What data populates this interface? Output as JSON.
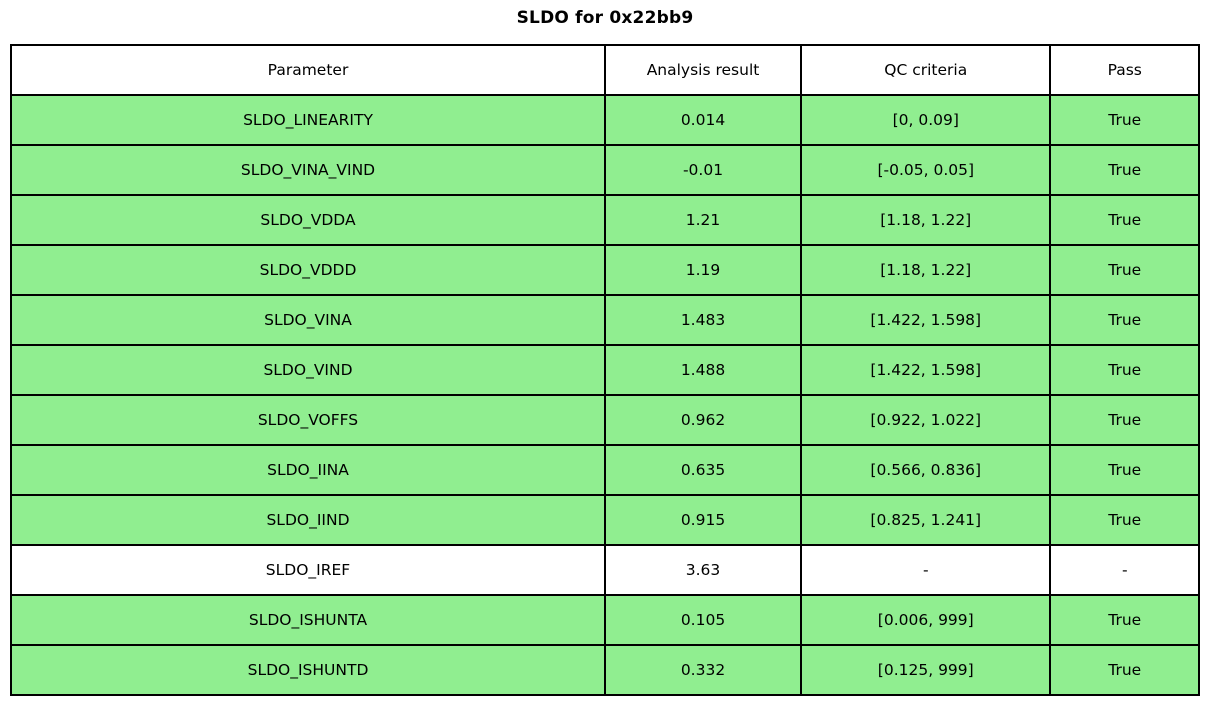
{
  "title": "SLDO for 0x22bb9",
  "colors": {
    "pass_row_background": "#90ee90",
    "neutral_row_background": "#ffffff",
    "border": "#000000"
  },
  "table": {
    "columns": [
      "Parameter",
      "Analysis result",
      "QC criteria",
      "Pass"
    ],
    "rows": [
      {
        "parameter": "SLDO_LINEARITY",
        "result": "0.014",
        "criteria": "[0, 0.09]",
        "pass": "True",
        "status": "pass"
      },
      {
        "parameter": "SLDO_VINA_VIND",
        "result": "-0.01",
        "criteria": "[-0.05, 0.05]",
        "pass": "True",
        "status": "pass"
      },
      {
        "parameter": "SLDO_VDDA",
        "result": "1.21",
        "criteria": "[1.18, 1.22]",
        "pass": "True",
        "status": "pass"
      },
      {
        "parameter": "SLDO_VDDD",
        "result": "1.19",
        "criteria": "[1.18, 1.22]",
        "pass": "True",
        "status": "pass"
      },
      {
        "parameter": "SLDO_VINA",
        "result": "1.483",
        "criteria": "[1.422, 1.598]",
        "pass": "True",
        "status": "pass"
      },
      {
        "parameter": "SLDO_VIND",
        "result": "1.488",
        "criteria": "[1.422, 1.598]",
        "pass": "True",
        "status": "pass"
      },
      {
        "parameter": "SLDO_VOFFS",
        "result": "0.962",
        "criteria": "[0.922, 1.022]",
        "pass": "True",
        "status": "pass"
      },
      {
        "parameter": "SLDO_IINA",
        "result": "0.635",
        "criteria": "[0.566, 0.836]",
        "pass": "True",
        "status": "pass"
      },
      {
        "parameter": "SLDO_IIND",
        "result": "0.915",
        "criteria": "[0.825, 1.241]",
        "pass": "True",
        "status": "pass"
      },
      {
        "parameter": "SLDO_IREF",
        "result": "3.63",
        "criteria": "-",
        "pass": "-",
        "status": "none"
      },
      {
        "parameter": "SLDO_ISHUNTA",
        "result": "0.105",
        "criteria": "[0.006, 999]",
        "pass": "True",
        "status": "pass"
      },
      {
        "parameter": "SLDO_ISHUNTD",
        "result": "0.332",
        "criteria": "[0.125, 999]",
        "pass": "True",
        "status": "pass"
      }
    ]
  }
}
